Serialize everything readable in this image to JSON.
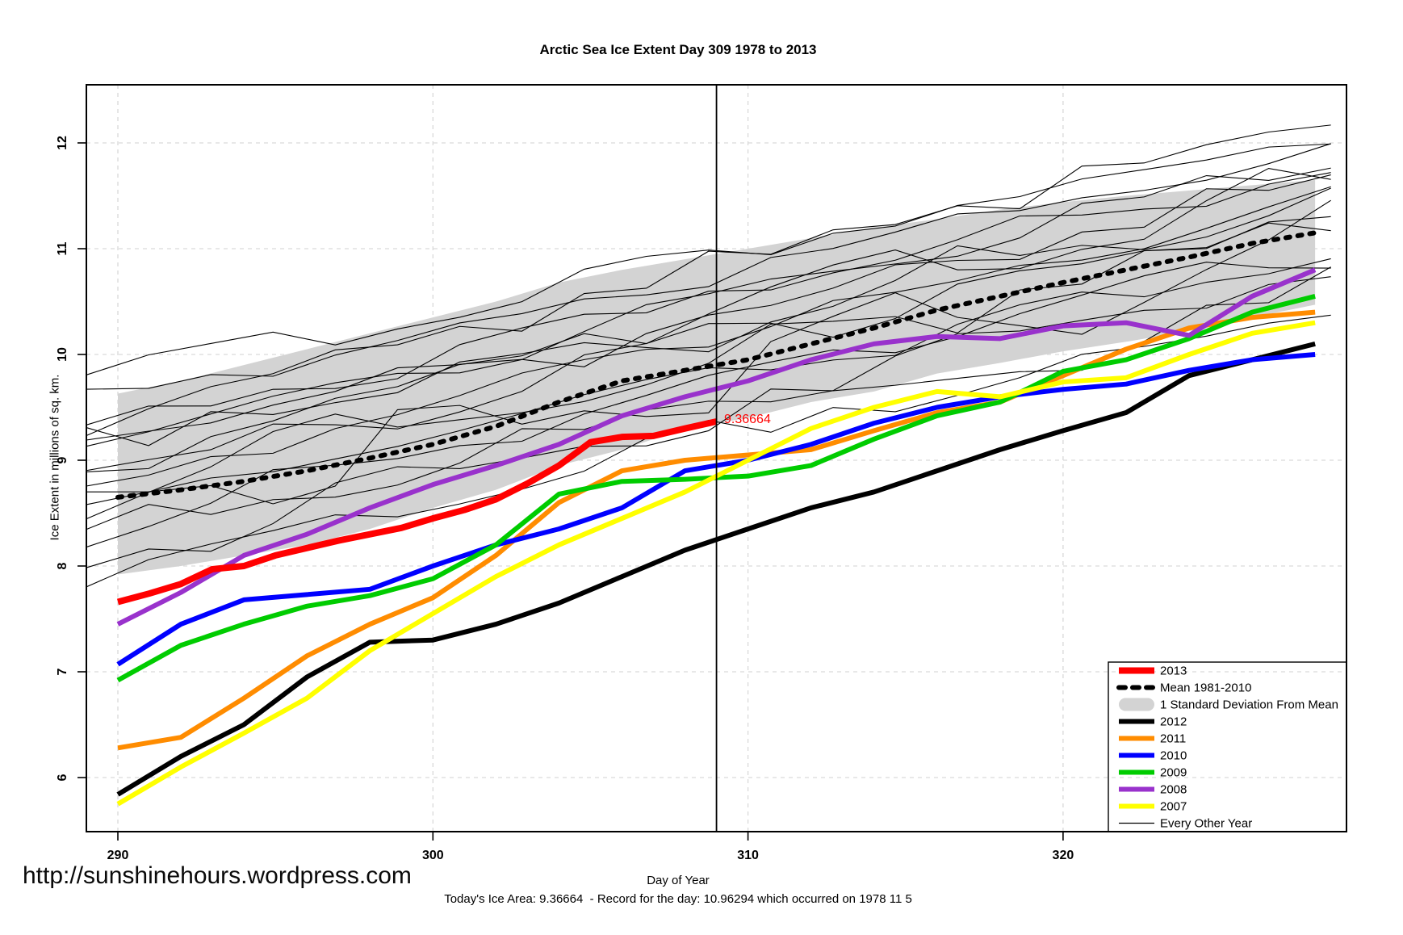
{
  "title": "Arctic Sea Ice Extent Day 309 1978 to 2013",
  "ylabel": "Ice Extent in millions of sq. km.",
  "xlabel": "Day of Year",
  "footer_url": "http://sunshinehours.wordpress.com",
  "status_line": "Today's Ice Area: 9.36664  - Record for the day: 10.96294 which occurred on 1978 11 5",
  "annotation": {
    "text": "9.36664",
    "day": 309,
    "value": 9.36664,
    "color": "#ff0000"
  },
  "axes": {
    "x_ticks": [
      290,
      300,
      310,
      320
    ],
    "y_ticks": [
      6,
      7,
      8,
      9,
      10,
      11,
      12
    ],
    "marker_day": 309,
    "grid": true,
    "grid_color": "#d9d9d9",
    "box_color": "#000000"
  },
  "legend": {
    "position": "bottom-right",
    "items": [
      {
        "label": "2013",
        "color": "#ff0000",
        "style": "thick"
      },
      {
        "label": "Mean 1981-2010",
        "color": "#000000",
        "style": "dashed"
      },
      {
        "label": "1 Standard Deviation From Mean",
        "color": "#d3d3d3",
        "style": "band"
      },
      {
        "label": "2012",
        "color": "#000000",
        "style": "thick"
      },
      {
        "label": "2011",
        "color": "#ff8c00",
        "style": "thick"
      },
      {
        "label": "2010",
        "color": "#0000ff",
        "style": "thick"
      },
      {
        "label": "2009",
        "color": "#00cc00",
        "style": "thick"
      },
      {
        "label": "2008",
        "color": "#9932cc",
        "style": "thick"
      },
      {
        "label": "2007",
        "color": "#ffff00",
        "style": "thick"
      },
      {
        "label": "Every Other Year",
        "color": "#000000",
        "style": "thin"
      }
    ]
  },
  "chart_data": {
    "type": "line",
    "title": "Arctic Sea Ice Extent Day 309 1978 to 2013",
    "xlabel": "Day of Year",
    "ylabel": "Ice Extent in millions of sq. km.",
    "xlim": [
      289,
      329
    ],
    "ylim": [
      5.5,
      12.55
    ],
    "x_days": [
      290,
      292,
      294,
      296,
      298,
      300,
      302,
      304,
      306,
      308,
      310,
      312,
      314,
      316,
      318,
      320,
      322,
      324,
      326,
      328
    ],
    "series": [
      {
        "name": "Mean 1981-2010",
        "color": "#000000",
        "width": 6,
        "dash": "5 10",
        "values": [
          8.65,
          8.72,
          8.8,
          8.9,
          9.02,
          9.15,
          9.32,
          9.55,
          9.75,
          9.85,
          9.95,
          10.1,
          10.25,
          10.42,
          10.55,
          10.68,
          10.8,
          10.92,
          11.05,
          11.15
        ]
      },
      {
        "name": "2012",
        "color": "#000000",
        "width": 6,
        "values": [
          5.84,
          6.2,
          6.5,
          6.95,
          7.28,
          7.3,
          7.45,
          7.65,
          7.9,
          8.15,
          8.35,
          8.55,
          8.7,
          8.9,
          9.1,
          9.28,
          9.45,
          9.8,
          9.95,
          10.1
        ]
      },
      {
        "name": "2011",
        "color": "#ff8c00",
        "width": 6,
        "values": [
          6.28,
          6.38,
          6.75,
          7.15,
          7.45,
          7.7,
          8.1,
          8.6,
          8.9,
          9.0,
          9.05,
          9.1,
          9.28,
          9.45,
          9.55,
          9.8,
          10.05,
          10.25,
          10.35,
          10.4
        ]
      },
      {
        "name": "2010",
        "color": "#0000ff",
        "width": 6,
        "values": [
          7.07,
          7.45,
          7.68,
          7.73,
          7.78,
          8.0,
          8.2,
          8.35,
          8.55,
          8.9,
          9.0,
          9.15,
          9.35,
          9.5,
          9.6,
          9.67,
          9.72,
          9.85,
          9.95,
          10.0
        ]
      },
      {
        "name": "2009",
        "color": "#00cc00",
        "width": 6,
        "values": [
          6.92,
          7.25,
          7.45,
          7.62,
          7.72,
          7.88,
          8.2,
          8.68,
          8.8,
          8.82,
          8.85,
          8.95,
          9.2,
          9.42,
          9.55,
          9.84,
          9.95,
          10.15,
          10.4,
          10.55
        ]
      },
      {
        "name": "2008",
        "color": "#9932cc",
        "width": 6,
        "values": [
          7.45,
          7.75,
          8.1,
          8.3,
          8.55,
          8.77,
          8.95,
          9.15,
          9.42,
          9.6,
          9.75,
          9.95,
          10.1,
          10.17,
          10.15,
          10.27,
          10.3,
          10.18,
          10.55,
          10.8
        ]
      },
      {
        "name": "2007",
        "color": "#ffff00",
        "width": 6,
        "values": [
          5.75,
          6.1,
          6.42,
          6.75,
          7.2,
          7.55,
          7.9,
          8.2,
          8.45,
          8.7,
          9.0,
          9.3,
          9.5,
          9.65,
          9.6,
          9.74,
          9.78,
          10.0,
          10.2,
          10.3
        ]
      }
    ],
    "series_2013": {
      "name": "2013",
      "color": "#ff0000",
      "width": 8,
      "x": [
        290,
        291,
        292,
        293,
        294,
        295,
        296,
        297,
        298,
        299,
        300,
        301,
        302,
        303,
        304,
        305,
        306,
        307,
        308,
        309
      ],
      "values": [
        7.66,
        7.74,
        7.83,
        7.97,
        8.0,
        8.1,
        8.17,
        8.24,
        8.3,
        8.36,
        8.45,
        8.53,
        8.63,
        8.78,
        8.95,
        9.17,
        9.22,
        9.23,
        9.3,
        9.36664
      ]
    },
    "band": {
      "name": "1 Standard Deviation From Mean",
      "color": "#d3d3d3",
      "top": [
        9.63,
        9.75,
        9.9,
        10.05,
        10.2,
        10.35,
        10.5,
        10.68,
        10.8,
        10.9,
        11.0,
        11.1,
        11.2,
        11.28,
        11.37,
        11.44,
        11.5,
        11.55,
        11.6,
        11.65
      ],
      "bottom": [
        7.92,
        8.0,
        8.1,
        8.2,
        8.35,
        8.55,
        8.72,
        8.95,
        9.1,
        9.3,
        9.4,
        9.55,
        9.65,
        9.82,
        9.92,
        10.03,
        10.12,
        10.22,
        10.35,
        10.47
      ]
    },
    "background_years": {
      "name": "Every Other Year",
      "color": "#000000",
      "width": 1.1,
      "lines": [
        {
          "start": 9.75,
          "end": 12.1,
          "amp": 0.12
        },
        {
          "start": 9.55,
          "end": 11.95,
          "amp": 0.1
        },
        {
          "start": 9.4,
          "end": 12.25,
          "amp": 0.15
        },
        {
          "start": 9.3,
          "end": 11.8,
          "amp": 0.12
        },
        {
          "start": 9.2,
          "end": 11.65,
          "amp": 0.18
        },
        {
          "start": 9.12,
          "end": 11.85,
          "amp": 0.1
        },
        {
          "start": 9.05,
          "end": 11.45,
          "amp": 0.22
        },
        {
          "start": 8.95,
          "end": 11.7,
          "amp": 0.12
        },
        {
          "start": 8.85,
          "end": 11.35,
          "amp": 0.15
        },
        {
          "start": 8.75,
          "end": 11.55,
          "amp": 0.1
        },
        {
          "start": 8.68,
          "end": 11.25,
          "amp": 0.2
        },
        {
          "start": 8.6,
          "end": 10.95,
          "amp": 0.12
        },
        {
          "start": 8.5,
          "end": 11.15,
          "amp": 0.3
        },
        {
          "start": 8.4,
          "end": 11.0,
          "amp": 0.15
        },
        {
          "start": 8.28,
          "end": 10.8,
          "amp": 0.12
        },
        {
          "start": 8.12,
          "end": 10.6,
          "amp": 0.18
        },
        {
          "start": 7.95,
          "end": 10.45,
          "amp": 0.12
        }
      ]
    }
  }
}
